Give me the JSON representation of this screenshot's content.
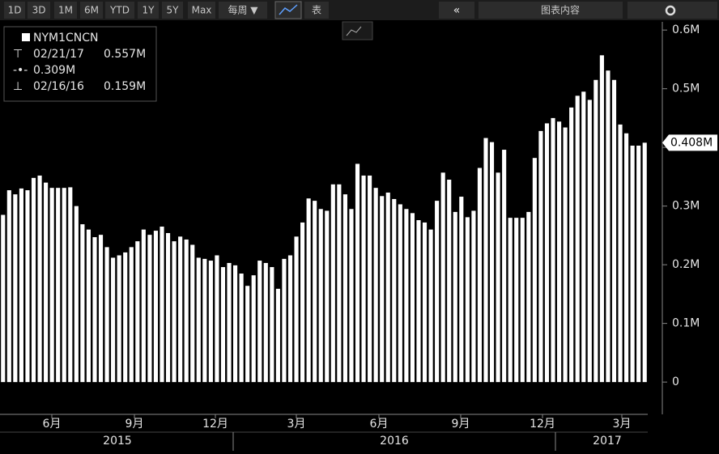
{
  "toolbar": {
    "ranges": [
      "1D",
      "3D",
      "1M",
      "6M",
      "YTD",
      "1Y",
      "5Y",
      "Max"
    ],
    "frequency": "每周 ▼",
    "table": "表",
    "chart_content": "图表内容"
  },
  "chart_data": {
    "type": "bar",
    "color": "#ffffff",
    "legend": {
      "name": "NYM1CNCN",
      "high": {
        "date": "02/21/17",
        "value": 0.557,
        "label": "0.557M"
      },
      "average": {
        "value": 0.309,
        "label": "0.309M"
      },
      "low": {
        "date": "02/16/16",
        "value": 0.159,
        "label": "0.159M"
      }
    },
    "last_value": {
      "value": 0.408,
      "label": "0.408M"
    },
    "values": [
      0.285,
      0.327,
      0.32,
      0.33,
      0.327,
      0.348,
      0.352,
      0.34,
      0.331,
      0.331,
      0.331,
      0.332,
      0.3,
      0.269,
      0.26,
      0.247,
      0.251,
      0.23,
      0.212,
      0.216,
      0.221,
      0.23,
      0.24,
      0.26,
      0.251,
      0.258,
      0.265,
      0.254,
      0.24,
      0.248,
      0.243,
      0.234,
      0.212,
      0.21,
      0.207,
      0.216,
      0.196,
      0.203,
      0.199,
      0.185,
      0.164,
      0.182,
      0.207,
      0.203,
      0.196,
      0.159,
      0.21,
      0.216,
      0.248,
      0.272,
      0.313,
      0.309,
      0.295,
      0.292,
      0.337,
      0.337,
      0.32,
      0.295,
      0.372,
      0.352,
      0.352,
      0.331,
      0.317,
      0.323,
      0.312,
      0.303,
      0.295,
      0.288,
      0.276,
      0.272,
      0.26,
      0.309,
      0.357,
      0.345,
      0.29,
      0.316,
      0.281,
      0.292,
      0.365,
      0.416,
      0.409,
      0.357,
      0.396,
      0.28,
      0.28,
      0.28,
      0.29,
      0.382,
      0.428,
      0.441,
      0.45,
      0.444,
      0.434,
      0.468,
      0.488,
      0.495,
      0.481,
      0.515,
      0.557,
      0.531,
      0.515,
      0.439,
      0.424,
      0.403,
      0.403,
      0.408
    ],
    "ylim": [
      -0.055,
      0.614
    ],
    "yticks": [
      0,
      {
        "value": 0.1,
        "label": "0.1M"
      },
      {
        "value": 0.2,
        "label": "0.2M"
      },
      {
        "value": 0.3,
        "label": "0.3M"
      },
      {
        "value": 0.4,
        "label": "0.4M"
      },
      {
        "value": 0.5,
        "label": "0.5M"
      },
      {
        "value": 0.6,
        "label": "0.6M"
      }
    ],
    "month_labels": [
      "6月",
      "9月",
      "12月",
      "3月",
      "6月",
      "9月",
      "12月",
      "3月"
    ],
    "year_labels": [
      "2015",
      "2016",
      "2017"
    ]
  }
}
